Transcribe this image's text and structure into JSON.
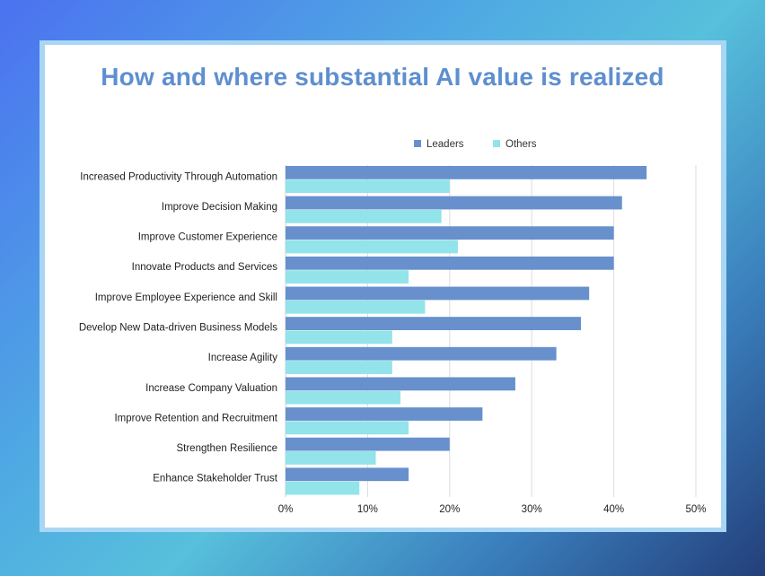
{
  "chart_data": {
    "type": "bar",
    "orientation": "horizontal",
    "title": "How and where substantial AI value is realized",
    "categories": [
      "Increased Productivity Through Automation",
      "Improve Decision Making",
      "Improve Customer Experience",
      "Innovate Products and Services",
      "Improve Employee Experience and Skill",
      "Develop New Data-driven Business Models",
      "Increase Agility",
      "Increase Company Valuation",
      "Improve Retention and Recruitment",
      "Strengthen Resilience",
      "Enhance Stakeholder Trust"
    ],
    "series": [
      {
        "name": "Leaders",
        "color": "#6790cd",
        "values": [
          44,
          41,
          40,
          40,
          37,
          36,
          33,
          28,
          24,
          20,
          15
        ]
      },
      {
        "name": "Others",
        "color": "#93e3ea",
        "values": [
          20,
          19,
          21,
          15,
          17,
          13,
          13,
          14,
          15,
          11,
          9
        ]
      }
    ],
    "xlim": [
      0,
      50
    ],
    "xticks": [
      0,
      10,
      20,
      30,
      40,
      50
    ],
    "tick_suffix": "%",
    "grid": true,
    "legend_position": "top-right"
  }
}
